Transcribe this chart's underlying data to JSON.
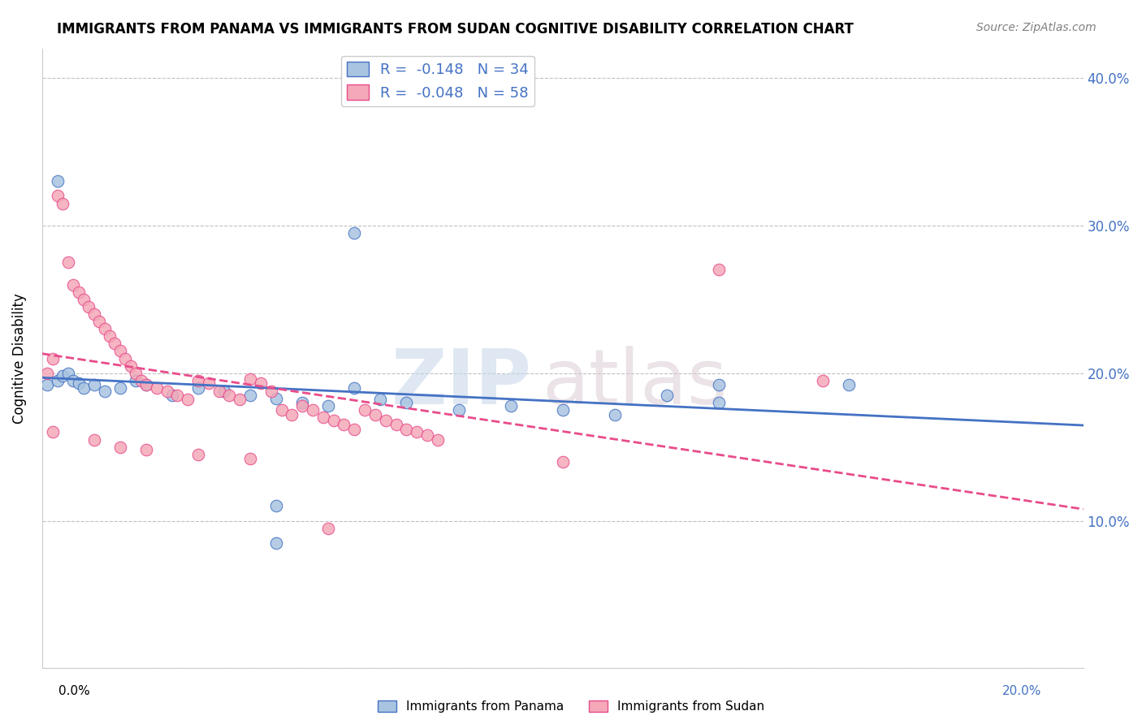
{
  "title": "IMMIGRANTS FROM PANAMA VS IMMIGRANTS FROM SUDAN COGNITIVE DISABILITY CORRELATION CHART",
  "source": "Source: ZipAtlas.com",
  "ylabel": "Cognitive Disability",
  "xlim": [
    0.0,
    0.2
  ],
  "ylim": [
    0.0,
    0.42
  ],
  "yticks": [
    0.0,
    0.1,
    0.2,
    0.3,
    0.4
  ],
  "ytick_labels": [
    "",
    "10.0%",
    "20.0%",
    "30.0%",
    "40.0%"
  ],
  "xticks": [
    0.0,
    0.05,
    0.1,
    0.15,
    0.2
  ],
  "panama_color": "#a8c4e0",
  "sudan_color": "#f4a8b8",
  "panama_line_color": "#4472c4",
  "sudan_line_color": "#e84c8b",
  "watermark_zip": "ZIP",
  "watermark_atlas": "atlas",
  "panama_points": [
    [
      0.001,
      0.192
    ],
    [
      0.003,
      0.195
    ],
    [
      0.004,
      0.198
    ],
    [
      0.005,
      0.2
    ],
    [
      0.006,
      0.195
    ],
    [
      0.007,
      0.193
    ],
    [
      0.008,
      0.19
    ],
    [
      0.01,
      0.192
    ],
    [
      0.012,
      0.188
    ],
    [
      0.015,
      0.19
    ],
    [
      0.018,
      0.195
    ],
    [
      0.02,
      0.192
    ],
    [
      0.025,
      0.185
    ],
    [
      0.03,
      0.19
    ],
    [
      0.035,
      0.188
    ],
    [
      0.04,
      0.185
    ],
    [
      0.045,
      0.183
    ],
    [
      0.05,
      0.18
    ],
    [
      0.055,
      0.178
    ],
    [
      0.06,
      0.19
    ],
    [
      0.065,
      0.182
    ],
    [
      0.07,
      0.18
    ],
    [
      0.08,
      0.175
    ],
    [
      0.09,
      0.178
    ],
    [
      0.1,
      0.175
    ],
    [
      0.11,
      0.172
    ],
    [
      0.12,
      0.185
    ],
    [
      0.13,
      0.18
    ],
    [
      0.003,
      0.33
    ],
    [
      0.06,
      0.295
    ],
    [
      0.045,
      0.11
    ],
    [
      0.045,
      0.085
    ],
    [
      0.13,
      0.192
    ],
    [
      0.155,
      0.192
    ]
  ],
  "sudan_points": [
    [
      0.001,
      0.2
    ],
    [
      0.002,
      0.21
    ],
    [
      0.003,
      0.32
    ],
    [
      0.004,
      0.315
    ],
    [
      0.005,
      0.275
    ],
    [
      0.006,
      0.26
    ],
    [
      0.007,
      0.255
    ],
    [
      0.008,
      0.25
    ],
    [
      0.009,
      0.245
    ],
    [
      0.01,
      0.24
    ],
    [
      0.011,
      0.235
    ],
    [
      0.012,
      0.23
    ],
    [
      0.013,
      0.225
    ],
    [
      0.014,
      0.22
    ],
    [
      0.015,
      0.215
    ],
    [
      0.016,
      0.21
    ],
    [
      0.017,
      0.205
    ],
    [
      0.018,
      0.2
    ],
    [
      0.019,
      0.195
    ],
    [
      0.02,
      0.192
    ],
    [
      0.022,
      0.19
    ],
    [
      0.024,
      0.188
    ],
    [
      0.026,
      0.185
    ],
    [
      0.028,
      0.182
    ],
    [
      0.03,
      0.195
    ],
    [
      0.032,
      0.193
    ],
    [
      0.034,
      0.188
    ],
    [
      0.036,
      0.185
    ],
    [
      0.038,
      0.182
    ],
    [
      0.04,
      0.196
    ],
    [
      0.042,
      0.193
    ],
    [
      0.044,
      0.188
    ],
    [
      0.046,
      0.175
    ],
    [
      0.048,
      0.172
    ],
    [
      0.05,
      0.178
    ],
    [
      0.052,
      0.175
    ],
    [
      0.054,
      0.17
    ],
    [
      0.056,
      0.168
    ],
    [
      0.058,
      0.165
    ],
    [
      0.06,
      0.162
    ],
    [
      0.062,
      0.175
    ],
    [
      0.064,
      0.172
    ],
    [
      0.066,
      0.168
    ],
    [
      0.068,
      0.165
    ],
    [
      0.07,
      0.162
    ],
    [
      0.072,
      0.16
    ],
    [
      0.074,
      0.158
    ],
    [
      0.076,
      0.155
    ],
    [
      0.002,
      0.16
    ],
    [
      0.01,
      0.155
    ],
    [
      0.015,
      0.15
    ],
    [
      0.02,
      0.148
    ],
    [
      0.03,
      0.145
    ],
    [
      0.04,
      0.142
    ],
    [
      0.055,
      0.095
    ],
    [
      0.1,
      0.14
    ],
    [
      0.13,
      0.27
    ],
    [
      0.15,
      0.195
    ]
  ]
}
